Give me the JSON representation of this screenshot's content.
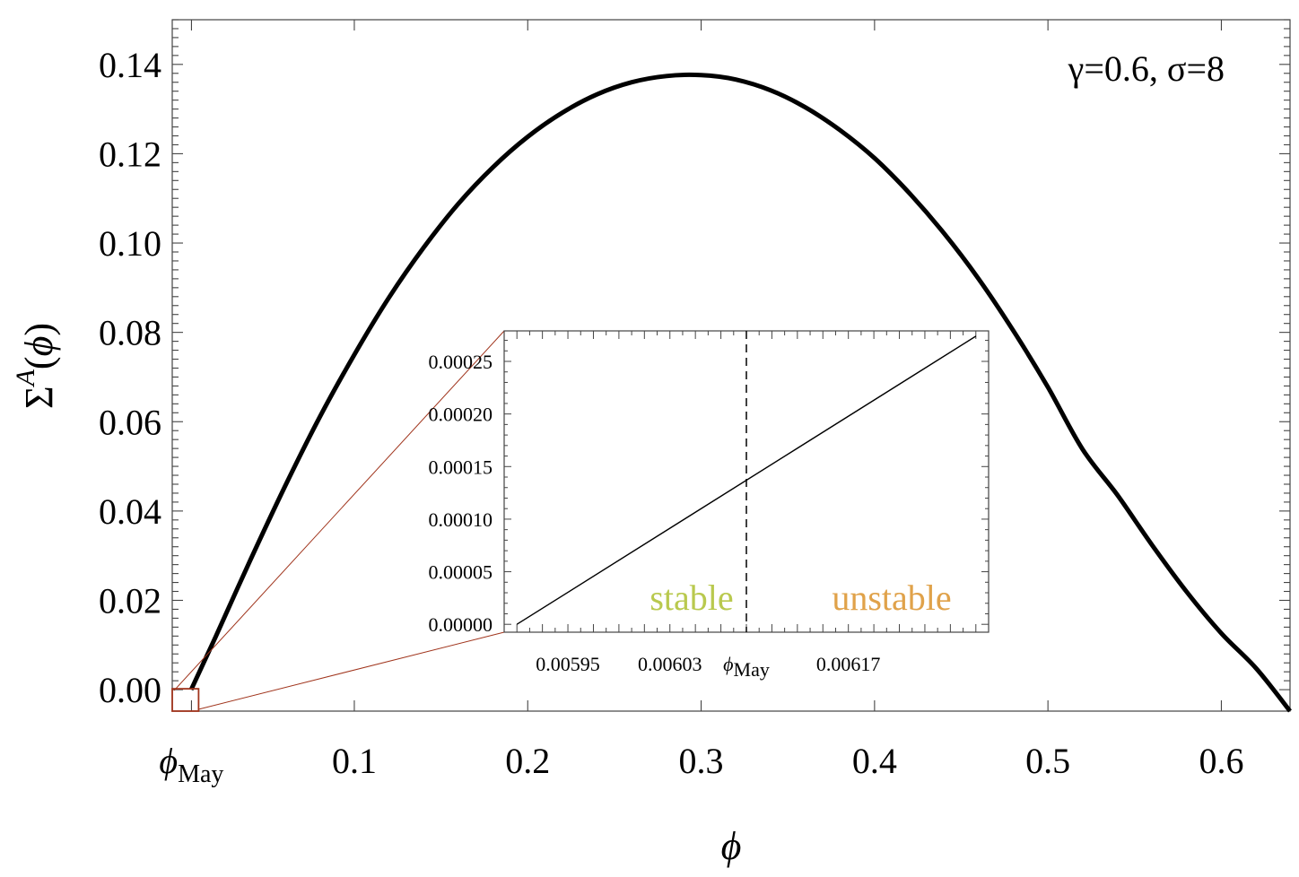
{
  "chart_data": [
    {
      "type": "line",
      "xlabel": "ϕ",
      "ylabel": "Σ^A(ϕ)",
      "annotation": "γ=0.6, σ=8",
      "xlim": [
        -0.005,
        0.6396
      ],
      "ylim": [
        -0.0048,
        0.15
      ],
      "x_ticks": [
        {
          "value": 0.00609,
          "label": "ϕMay",
          "main": "ϕ",
          "sub": "May"
        },
        {
          "value": 0.1,
          "label": "0.1"
        },
        {
          "value": 0.2,
          "label": "0.2"
        },
        {
          "value": 0.3,
          "label": "0.3"
        },
        {
          "value": 0.4,
          "label": "0.4"
        },
        {
          "value": 0.5,
          "label": "0.5"
        },
        {
          "value": 0.6,
          "label": "0.6"
        }
      ],
      "y_ticks": [
        {
          "value": 0.0,
          "label": "0.00"
        },
        {
          "value": 0.02,
          "label": "0.02"
        },
        {
          "value": 0.04,
          "label": "0.04"
        },
        {
          "value": 0.06,
          "label": "0.06"
        },
        {
          "value": 0.08,
          "label": "0.08"
        },
        {
          "value": 0.1,
          "label": "0.10"
        },
        {
          "value": 0.12,
          "label": "0.12"
        },
        {
          "value": 0.14,
          "label": "0.14"
        }
      ],
      "series": [
        {
          "color": "#000000",
          "x": [
            0.0059,
            0.02,
            0.04,
            0.06,
            0.08,
            0.1,
            0.12,
            0.14,
            0.16,
            0.18,
            0.2,
            0.22,
            0.24,
            0.26,
            0.28,
            0.3,
            0.32,
            0.34,
            0.36,
            0.38,
            0.4,
            0.42,
            0.44,
            0.46,
            0.48,
            0.5,
            0.52,
            0.54,
            0.56,
            0.58,
            0.6,
            0.62,
            0.6396
          ],
          "y": [
            0.0,
            0.0118,
            0.029,
            0.0455,
            0.061,
            0.075,
            0.0878,
            0.099,
            0.1088,
            0.117,
            0.1238,
            0.1292,
            0.1333,
            0.136,
            0.1374,
            0.1376,
            0.1366,
            0.1342,
            0.1304,
            0.1253,
            0.119,
            0.1112,
            0.1022,
            0.092,
            0.0804,
            0.0677,
            0.0538,
            0.0436,
            0.0324,
            0.0219,
            0.0126,
            0.0048,
            -0.0048
          ]
        }
      ],
      "zoom_box": {
        "x": [
          -0.005,
          0.0102
        ],
        "y": [
          -0.0048,
          0.0002
        ],
        "color": "#a0341c"
      }
    },
    {
      "type": "line",
      "xlim": [
        0.0059,
        0.00628
      ],
      "ylim": [
        -7.5e-06,
        0.000279
      ],
      "x_ticks": [
        {
          "value": 0.00595,
          "label": "0.00595"
        },
        {
          "value": 0.00603,
          "label": "0.00603"
        },
        {
          "value": 0.00609,
          "label": "ϕMay",
          "main": "ϕ",
          "sub": "May"
        },
        {
          "value": 0.00617,
          "label": "0.00617"
        }
      ],
      "y_ticks": [
        {
          "value": 0.0,
          "label": "0.00000"
        },
        {
          "value": 5e-05,
          "label": "0.00005"
        },
        {
          "value": 0.0001,
          "label": "0.00010"
        },
        {
          "value": 0.00015,
          "label": "0.00015"
        },
        {
          "value": 0.0002,
          "label": "0.00020"
        },
        {
          "value": 0.00025,
          "label": "0.00025"
        }
      ],
      "vline": {
        "x": 0.00609,
        "style": "dashed"
      },
      "series": [
        {
          "color": "#000000",
          "x": [
            0.00591,
            0.00627
          ],
          "y": [
            0.0,
            0.000274
          ]
        }
      ],
      "region_labels": [
        {
          "text": "stable",
          "color": "#b9c94e"
        },
        {
          "text": "unstable",
          "color": "#e0a24a"
        }
      ]
    }
  ]
}
